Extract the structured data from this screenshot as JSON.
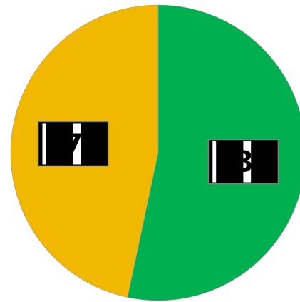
{
  "chart_data": {
    "type": "pie",
    "title": "",
    "slices": [
      {
        "label": "8",
        "value": 8,
        "color": "#00b050"
      },
      {
        "label": "7",
        "value": 7,
        "color": "#f0b800"
      }
    ],
    "legend": "none",
    "start_angle_deg": 0,
    "direction": "clockwise"
  }
}
